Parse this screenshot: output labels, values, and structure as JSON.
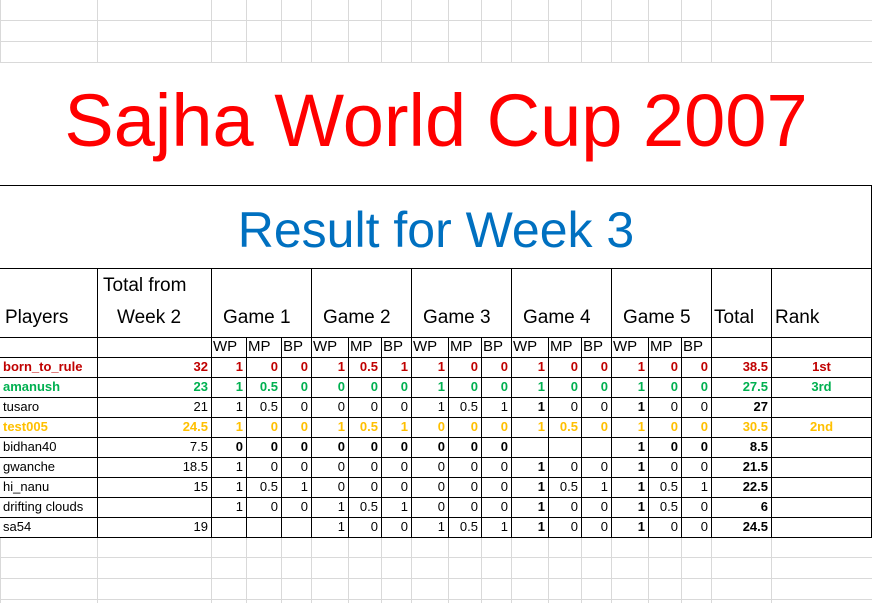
{
  "title": "Sajha World Cup 2007",
  "subtitle": "Result for Week 3",
  "colors": {
    "title": "#ff0000",
    "subtitle": "#0070c0",
    "first": "#c00000",
    "second": "#ffc000",
    "third": "#00b050"
  },
  "headers": {
    "players": "Players",
    "total_from_line1": "Total from",
    "total_from_line2": "Week 2",
    "games": [
      "Game 1",
      "Game 2",
      "Game 3",
      "Game 4",
      "Game 5"
    ],
    "total": "Total",
    "rank": "Rank",
    "sub": [
      "WP",
      "MP",
      "BP"
    ]
  },
  "rows": [
    {
      "player": "born_to_rule",
      "prev": "32",
      "scores": [
        "1",
        "0",
        "0",
        "1",
        "0.5",
        "1",
        "1",
        "0",
        "0",
        "1",
        "0",
        "0",
        "1",
        "0",
        "0"
      ],
      "total": "38.5",
      "rank": "1st",
      "color": "#c00000"
    },
    {
      "player": "amanush",
      "prev": "23",
      "scores": [
        "1",
        "0.5",
        "0",
        "0",
        "0",
        "0",
        "1",
        "0",
        "0",
        "1",
        "0",
        "0",
        "1",
        "0",
        "0"
      ],
      "total": "27.5",
      "rank": "3rd",
      "color": "#00b050"
    },
    {
      "player": "tusaro",
      "prev": "21",
      "scores": [
        "1",
        "0.5",
        "0",
        "0",
        "0",
        "0",
        "1",
        "0.5",
        "1",
        "1",
        "0",
        "0",
        "1",
        "0",
        "0"
      ],
      "total": "27",
      "rank": "",
      "color": ""
    },
    {
      "player": "test005",
      "prev": "24.5",
      "scores": [
        "1",
        "0",
        "0",
        "1",
        "0.5",
        "1",
        "0",
        "0",
        "0",
        "1",
        "0.5",
        "0",
        "1",
        "0",
        "0"
      ],
      "total": "30.5",
      "rank": "2nd",
      "color": "#ffc000"
    },
    {
      "player": "bidhan40",
      "prev": "7.5",
      "scores": [
        "0",
        "0",
        "0",
        "0",
        "0",
        "0",
        "0",
        "0",
        "0",
        "",
        "",
        "",
        "1",
        "0",
        "0"
      ],
      "total": "8.5",
      "rank": "",
      "color": "",
      "bold": true
    },
    {
      "player": "gwanche",
      "prev": "18.5",
      "scores": [
        "1",
        "0",
        "0",
        "0",
        "0",
        "0",
        "0",
        "0",
        "0",
        "1",
        "0",
        "0",
        "1",
        "0",
        "0"
      ],
      "total": "21.5",
      "rank": "",
      "color": ""
    },
    {
      "player": "hi_nanu",
      "prev": "15",
      "scores": [
        "1",
        "0.5",
        "1",
        "0",
        "0",
        "0",
        "0",
        "0",
        "0",
        "1",
        "0.5",
        "1",
        "1",
        "0.5",
        "1"
      ],
      "total": "22.5",
      "rank": "",
      "color": ""
    },
    {
      "player": "drifting clouds",
      "prev": "",
      "scores": [
        "1",
        "0",
        "0",
        "1",
        "0.5",
        "1",
        "0",
        "0",
        "0",
        "1",
        "0",
        "0",
        "1",
        "0.5",
        "0"
      ],
      "total": "6",
      "rank": "",
      "color": ""
    },
    {
      "player": "sa54",
      "prev": "19",
      "scores": [
        "",
        "",
        "",
        "1",
        "0",
        "0",
        "1",
        "0.5",
        "1",
        "1",
        "0",
        "0",
        "1",
        "0",
        "0"
      ],
      "total": "24.5",
      "rank": "",
      "color": ""
    }
  ]
}
